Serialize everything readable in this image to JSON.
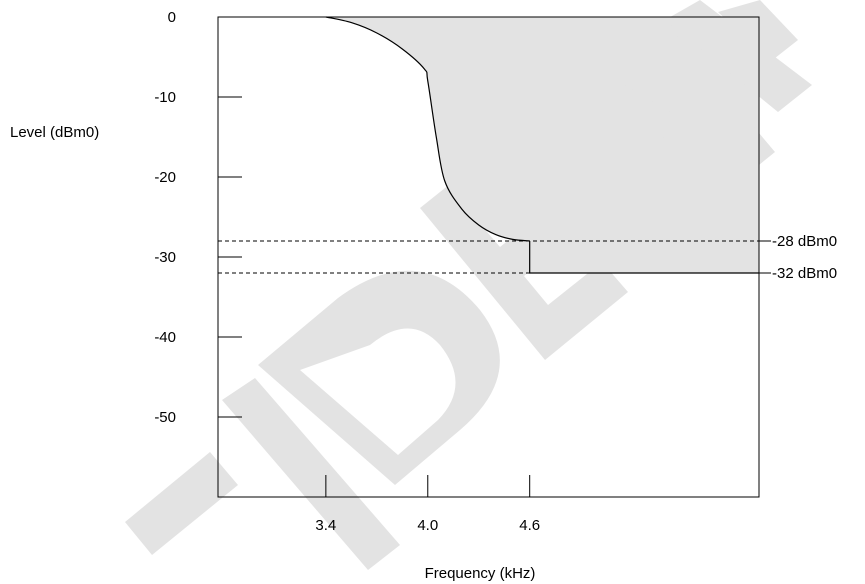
{
  "chart_data": {
    "type": "line",
    "title": "",
    "xlabel": "Frequency (kHz)",
    "ylabel": "Level (dBm0)",
    "xlim": [
      2.765,
      5.95
    ],
    "ylim": [
      -60,
      0
    ],
    "x_ticks": [
      {
        "value": 3.4,
        "label": "3.4"
      },
      {
        "value": 4.0,
        "label": "4.0"
      },
      {
        "value": 4.6,
        "label": "4.6"
      }
    ],
    "y_ticks": [
      {
        "value": 0,
        "label": "0"
      },
      {
        "value": -10,
        "label": "-10"
      },
      {
        "value": -20,
        "label": "-20"
      },
      {
        "value": -30,
        "label": "-30"
      },
      {
        "value": -40,
        "label": "-40"
      },
      {
        "value": -50,
        "label": "-50"
      }
    ],
    "reference_lines": [
      {
        "value": -28,
        "label": "-28 dBm0"
      },
      {
        "value": -32,
        "label": "-32 dBm0"
      }
    ],
    "mask_curve": {
      "x": [
        3.4,
        3.55,
        3.7,
        3.85,
        3.98,
        4.0,
        4.05,
        4.1,
        4.2,
        4.3,
        4.4,
        4.5,
        4.6
      ],
      "y": [
        0,
        -0.7,
        -2.0,
        -4.0,
        -6.5,
        -8.0,
        -15.0,
        -20.5,
        -24.0,
        -26.0,
        -27.2,
        -27.8,
        -28.0
      ]
    },
    "mask_floor": {
      "x_start": 4.6,
      "y": -32
    },
    "grid": false,
    "legend": "none",
    "colors": {
      "shaded_region": "#e3e3e3",
      "line": "#000000",
      "watermark": "#e3e3e3"
    }
  },
  "watermark_text": "CONFIDENTIAL"
}
